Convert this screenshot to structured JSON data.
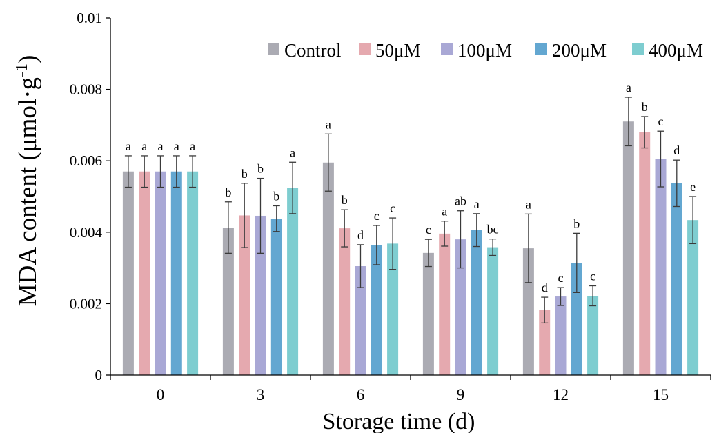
{
  "chart_data": {
    "type": "bar",
    "xlabel": "Storage time (d)",
    "ylabel": "MDA content (μmol·g",
    "ylabel_sup": "-1",
    "ylabel_close": ")",
    "categories": [
      "0",
      "3",
      "6",
      "9",
      "12",
      "15"
    ],
    "ylim": [
      0,
      0.01
    ],
    "yticks": [
      "0",
      "0.002",
      "0.004",
      "0.006",
      "0.008",
      "0.01"
    ],
    "legend_position": "top-right",
    "grid": false,
    "series": [
      {
        "name": "Control",
        "color": "#ABABB3",
        "values": [
          0.0057,
          0.00413,
          0.00595,
          0.00342,
          0.00355,
          0.0071
        ],
        "errors": [
          0.00044,
          0.00072,
          0.0008,
          0.00038,
          0.00096,
          0.00068
        ],
        "letters": [
          "a",
          "b",
          "a",
          "c",
          "a",
          "a"
        ]
      },
      {
        "name": "50μM",
        "color": "#E5A9AF",
        "values": [
          0.0057,
          0.00447,
          0.00411,
          0.00396,
          0.00182,
          0.0068
        ],
        "errors": [
          0.00044,
          0.0009,
          0.00052,
          0.00035,
          0.00036,
          0.00044
        ],
        "letters": [
          "a",
          "b",
          "b",
          "a",
          "d",
          "b"
        ]
      },
      {
        "name": "100μM",
        "color": "#A9A8D5",
        "values": [
          0.0057,
          0.00446,
          0.00305,
          0.0038,
          0.0022,
          0.00605
        ],
        "errors": [
          0.00044,
          0.00105,
          0.0006,
          0.0008,
          0.00025,
          0.00078
        ],
        "letters": [
          "a",
          "b",
          "d",
          "ab",
          "c",
          "c"
        ]
      },
      {
        "name": "200μM",
        "color": "#63A7D1",
        "values": [
          0.0057,
          0.00438,
          0.00364,
          0.00406,
          0.00314,
          0.00537
        ],
        "errors": [
          0.00044,
          0.00036,
          0.00055,
          0.00046,
          0.00083,
          0.00065
        ],
        "letters": [
          "a",
          "b",
          "c",
          "a",
          "b",
          "d"
        ]
      },
      {
        "name": "400μM",
        "color": "#7ECDD0",
        "values": [
          0.0057,
          0.00524,
          0.00368,
          0.00358,
          0.00222,
          0.00434
        ],
        "errors": [
          0.00044,
          0.00072,
          0.00072,
          0.00023,
          0.00028,
          0.00066
        ],
        "letters": [
          "a",
          "a",
          "c",
          "bc",
          "c",
          "e"
        ]
      }
    ]
  }
}
